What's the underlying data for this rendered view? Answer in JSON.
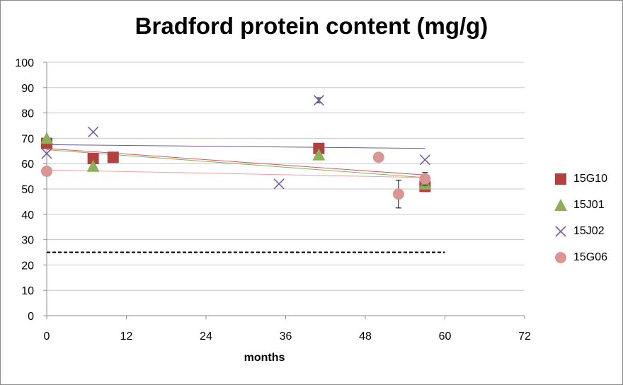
{
  "chart_data": {
    "type": "scatter",
    "title": "Bradford protein content (mg/g)",
    "xlabel": "months",
    "ylabel": "",
    "xlim": [
      0,
      72
    ],
    "ylim": [
      0,
      100
    ],
    "xticks": [
      0,
      12,
      24,
      36,
      48,
      60,
      72
    ],
    "yticks": [
      0,
      10,
      20,
      30,
      40,
      50,
      60,
      70,
      80,
      90,
      100
    ],
    "grid": "horizontal",
    "legend_position": "right",
    "reference_line": {
      "y": 25,
      "x_range": [
        0,
        60
      ],
      "style": "dashed",
      "color": "#000000"
    },
    "series": [
      {
        "name": "15G10",
        "marker": "square",
        "color": "#b0413e",
        "points": [
          {
            "x": 0,
            "y": 68
          },
          {
            "x": 7,
            "y": 62
          },
          {
            "x": 10,
            "y": 62.5
          },
          {
            "x": 41,
            "y": 66,
            "err": 2
          },
          {
            "x": 57,
            "y": 51
          }
        ],
        "trend": {
          "x": [
            0,
            57
          ],
          "y": [
            66,
            55.5
          ],
          "color": "#d45a5a"
        }
      },
      {
        "name": "15J01",
        "marker": "triangle",
        "color": "#8fae5a",
        "points": [
          {
            "x": 0,
            "y": 70
          },
          {
            "x": 7,
            "y": 59
          },
          {
            "x": 41,
            "y": 63.5
          },
          {
            "x": 57,
            "y": 52
          }
        ],
        "trend": {
          "x": [
            0,
            57
          ],
          "y": [
            65.5,
            54.5
          ],
          "color": "#8fae5a"
        }
      },
      {
        "name": "15J02",
        "marker": "x",
        "color": "#7b5e9e",
        "points": [
          {
            "x": 0,
            "y": 64
          },
          {
            "x": 7,
            "y": 72.5
          },
          {
            "x": 35,
            "y": 52
          },
          {
            "x": 41,
            "y": 85,
            "err": 1
          },
          {
            "x": 57,
            "y": 61.5
          }
        ],
        "trend": {
          "x": [
            0,
            57
          ],
          "y": [
            67.5,
            66
          ],
          "color": "#6b5a94"
        }
      },
      {
        "name": "15G06",
        "marker": "circle",
        "color": "#da9695",
        "points": [
          {
            "x": 0,
            "y": 57
          },
          {
            "x": 50,
            "y": 62.5
          },
          {
            "x": 53,
            "y": 48,
            "err": 5.5
          },
          {
            "x": 57,
            "y": 54,
            "err": 2.5
          }
        ],
        "trend": {
          "x": [
            0,
            57
          ],
          "y": [
            57.5,
            54.5
          ],
          "color": "#f0a0a0"
        }
      }
    ]
  }
}
